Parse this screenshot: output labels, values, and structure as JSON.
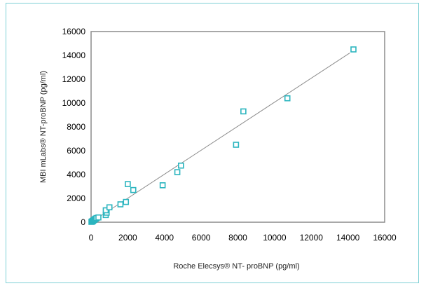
{
  "chart_data": {
    "type": "scatter",
    "title": "",
    "xlabel": "Roche Elecsys®  NT- proBNP (pg/ml)",
    "ylabel": "MBI mLabs® NT-proBNP (pg/ml)",
    "xlim": [
      0,
      16000
    ],
    "ylim": [
      0,
      16000
    ],
    "xticks": [
      "0",
      "2000",
      "4000",
      "6000",
      "8000",
      "10000",
      "12000",
      "14000",
      "16000"
    ],
    "yticks": [
      "0",
      "2000",
      "4000",
      "6000",
      "8000",
      "10000",
      "12000",
      "14000",
      "16000"
    ],
    "grid": false,
    "legend": "none",
    "marker_color": "#2bb5bf",
    "trendline_color": "#8c8c8c",
    "plot_border_color": "#8c8c8c",
    "trendline": {
      "x": [
        0,
        14100
      ],
      "y": [
        0,
        14200
      ]
    },
    "points": [
      {
        "x": 20,
        "y": 30
      },
      {
        "x": 40,
        "y": 50
      },
      {
        "x": 60,
        "y": 60
      },
      {
        "x": 80,
        "y": 90
      },
      {
        "x": 100,
        "y": 100
      },
      {
        "x": 120,
        "y": 150
      },
      {
        "x": 150,
        "y": 180
      },
      {
        "x": 180,
        "y": 200
      },
      {
        "x": 200,
        "y": 250
      },
      {
        "x": 250,
        "y": 300
      },
      {
        "x": 300,
        "y": 350
      },
      {
        "x": 400,
        "y": 400
      },
      {
        "x": 800,
        "y": 600
      },
      {
        "x": 850,
        "y": 800
      },
      {
        "x": 800,
        "y": 1000
      },
      {
        "x": 1000,
        "y": 1250
      },
      {
        "x": 1600,
        "y": 1500
      },
      {
        "x": 1900,
        "y": 1700
      },
      {
        "x": 2000,
        "y": 3200
      },
      {
        "x": 2300,
        "y": 2700
      },
      {
        "x": 3900,
        "y": 3100
      },
      {
        "x": 4700,
        "y": 4200
      },
      {
        "x": 4900,
        "y": 4750
      },
      {
        "x": 7900,
        "y": 6500
      },
      {
        "x": 8300,
        "y": 9300
      },
      {
        "x": 10700,
        "y": 10400
      },
      {
        "x": 14300,
        "y": 14500
      }
    ]
  }
}
